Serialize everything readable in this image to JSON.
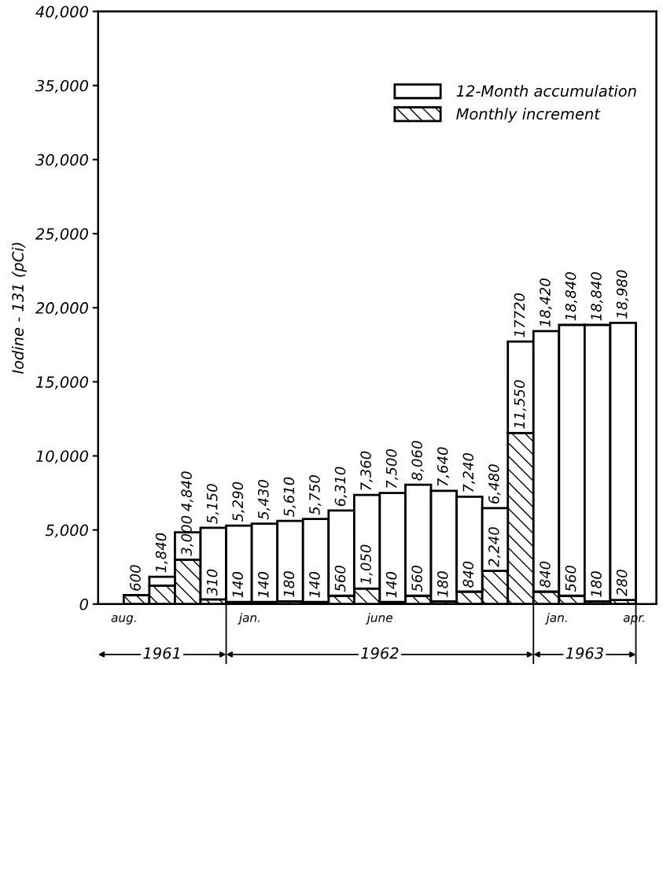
{
  "chart_data": {
    "type": "bar",
    "stacked": true,
    "ylabel": "Iodine - 131 (pCi)",
    "categories": [
      "aug.",
      null,
      null,
      null,
      null,
      "jan.",
      null,
      null,
      null,
      null,
      "june",
      null,
      null,
      null,
      null,
      null,
      null,
      "jan.",
      null,
      null,
      "apr."
    ],
    "series": [
      {
        "name": "Monthly increment",
        "color": "#000000",
        "values": [
          null,
          600,
          1240,
          3000,
          310,
          140,
          140,
          180,
          140,
          560,
          1050,
          140,
          560,
          180,
          840,
          2240,
          11550,
          840,
          560,
          180,
          280
        ],
        "value_labels": [
          null,
          null,
          null,
          "3,000",
          "310",
          "140",
          "140",
          "180",
          "140",
          "560",
          "1,050",
          "140",
          "560",
          "180",
          "840",
          "2,240",
          "11,550",
          "840",
          "560",
          "180",
          "280"
        ]
      },
      {
        "name": "12-Month accumulation",
        "color": "#ffffff",
        "values": [
          null,
          0,
          600,
          1840,
          4840,
          5150,
          5290,
          5430,
          5610,
          5750,
          6310,
          7360,
          7500,
          7460,
          6400,
          4240,
          6170,
          17580,
          18280,
          18660,
          18700
        ]
      }
    ],
    "totals": [
      null,
      "600",
      "1,840",
      "4,840",
      "5,150",
      "5,290",
      "5,430",
      "5,610",
      "5,750",
      "6,310",
      "7,360",
      "7,500",
      "8,060",
      "7,640",
      "7,240",
      "6,480",
      "17720",
      "18,420",
      "18,840",
      "18,840",
      "18,980"
    ],
    "ylim": [
      0,
      40000
    ],
    "yticks": [
      0,
      {
        "value": 5000,
        "label": "5,000"
      },
      {
        "value": 10000,
        "label": "10,000"
      },
      {
        "value": 15000,
        "label": "15,000"
      },
      {
        "value": 20000,
        "label": "20,000"
      },
      {
        "value": 25000,
        "label": "25,000"
      },
      {
        "value": 30000,
        "label": "30,000"
      },
      {
        "value": 35000,
        "label": "35,000"
      },
      {
        "value": 40000,
        "label": "40,000"
      }
    ],
    "annotations": [
      "1961",
      "1962",
      "1963"
    ],
    "legend": "top right",
    "grid": false
  }
}
